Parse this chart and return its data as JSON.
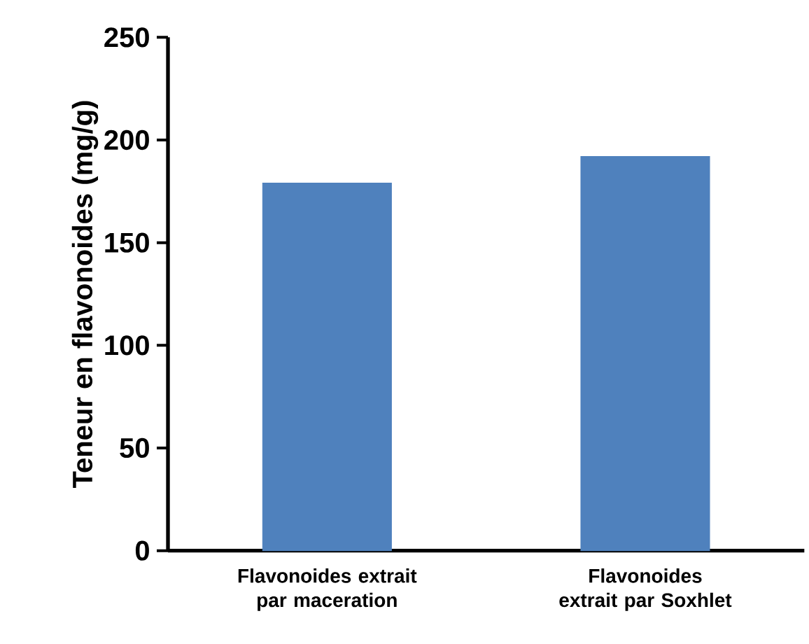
{
  "chart_data": {
    "type": "bar",
    "ylabel": "Teneur  en flavonoides (mg/g)",
    "categories": [
      "Flavonoides extrait par maceration",
      "Flavonoides extrait par Soxhlet"
    ],
    "values": [
      179,
      192
    ],
    "color": "#4f81bd",
    "ylim": [
      0,
      250
    ],
    "yticks": [
      0,
      50,
      100,
      150,
      200,
      250
    ],
    "grid": false
  }
}
